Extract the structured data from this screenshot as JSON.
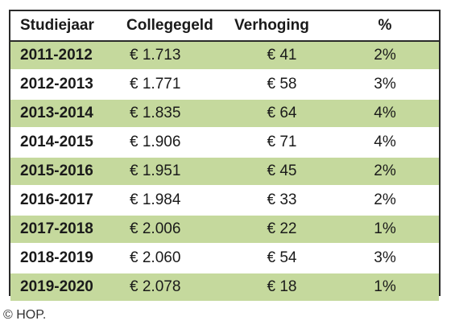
{
  "headers": {
    "year": "Studiejaar",
    "fee": "Collegegeld",
    "increase": "Verhoging",
    "percent": "%"
  },
  "rows": [
    {
      "year": "2011-2012",
      "fee": "€ 1.713",
      "increase": "€ 41",
      "percent": "2%"
    },
    {
      "year": "2012-2013",
      "fee": "€ 1.771",
      "increase": "€ 58",
      "percent": "3%"
    },
    {
      "year": "2013-2014",
      "fee": "€ 1.835",
      "increase": "€ 64",
      "percent": "4%"
    },
    {
      "year": "2014-2015",
      "fee": "€ 1.906",
      "increase": "€ 71",
      "percent": "4%"
    },
    {
      "year": "2015-2016",
      "fee": "€ 1.951",
      "increase": "€ 45",
      "percent": "2%"
    },
    {
      "year": "2016-2017",
      "fee": "€ 1.984",
      "increase": "€ 33",
      "percent": "2%"
    },
    {
      "year": "2017-2018",
      "fee": "€ 2.006",
      "increase": "€ 22",
      "percent": "1%"
    },
    {
      "year": "2018-2019",
      "fee": "€ 2.060",
      "increase": "€ 54",
      "percent": "3%"
    },
    {
      "year": "2019-2020",
      "fee": "€ 2.078",
      "increase": "€ 18",
      "percent": "1%"
    }
  ],
  "caption": "© HOP.",
  "colors": {
    "shaded_row": "#c5d99d",
    "border": "#2a2a2a"
  }
}
